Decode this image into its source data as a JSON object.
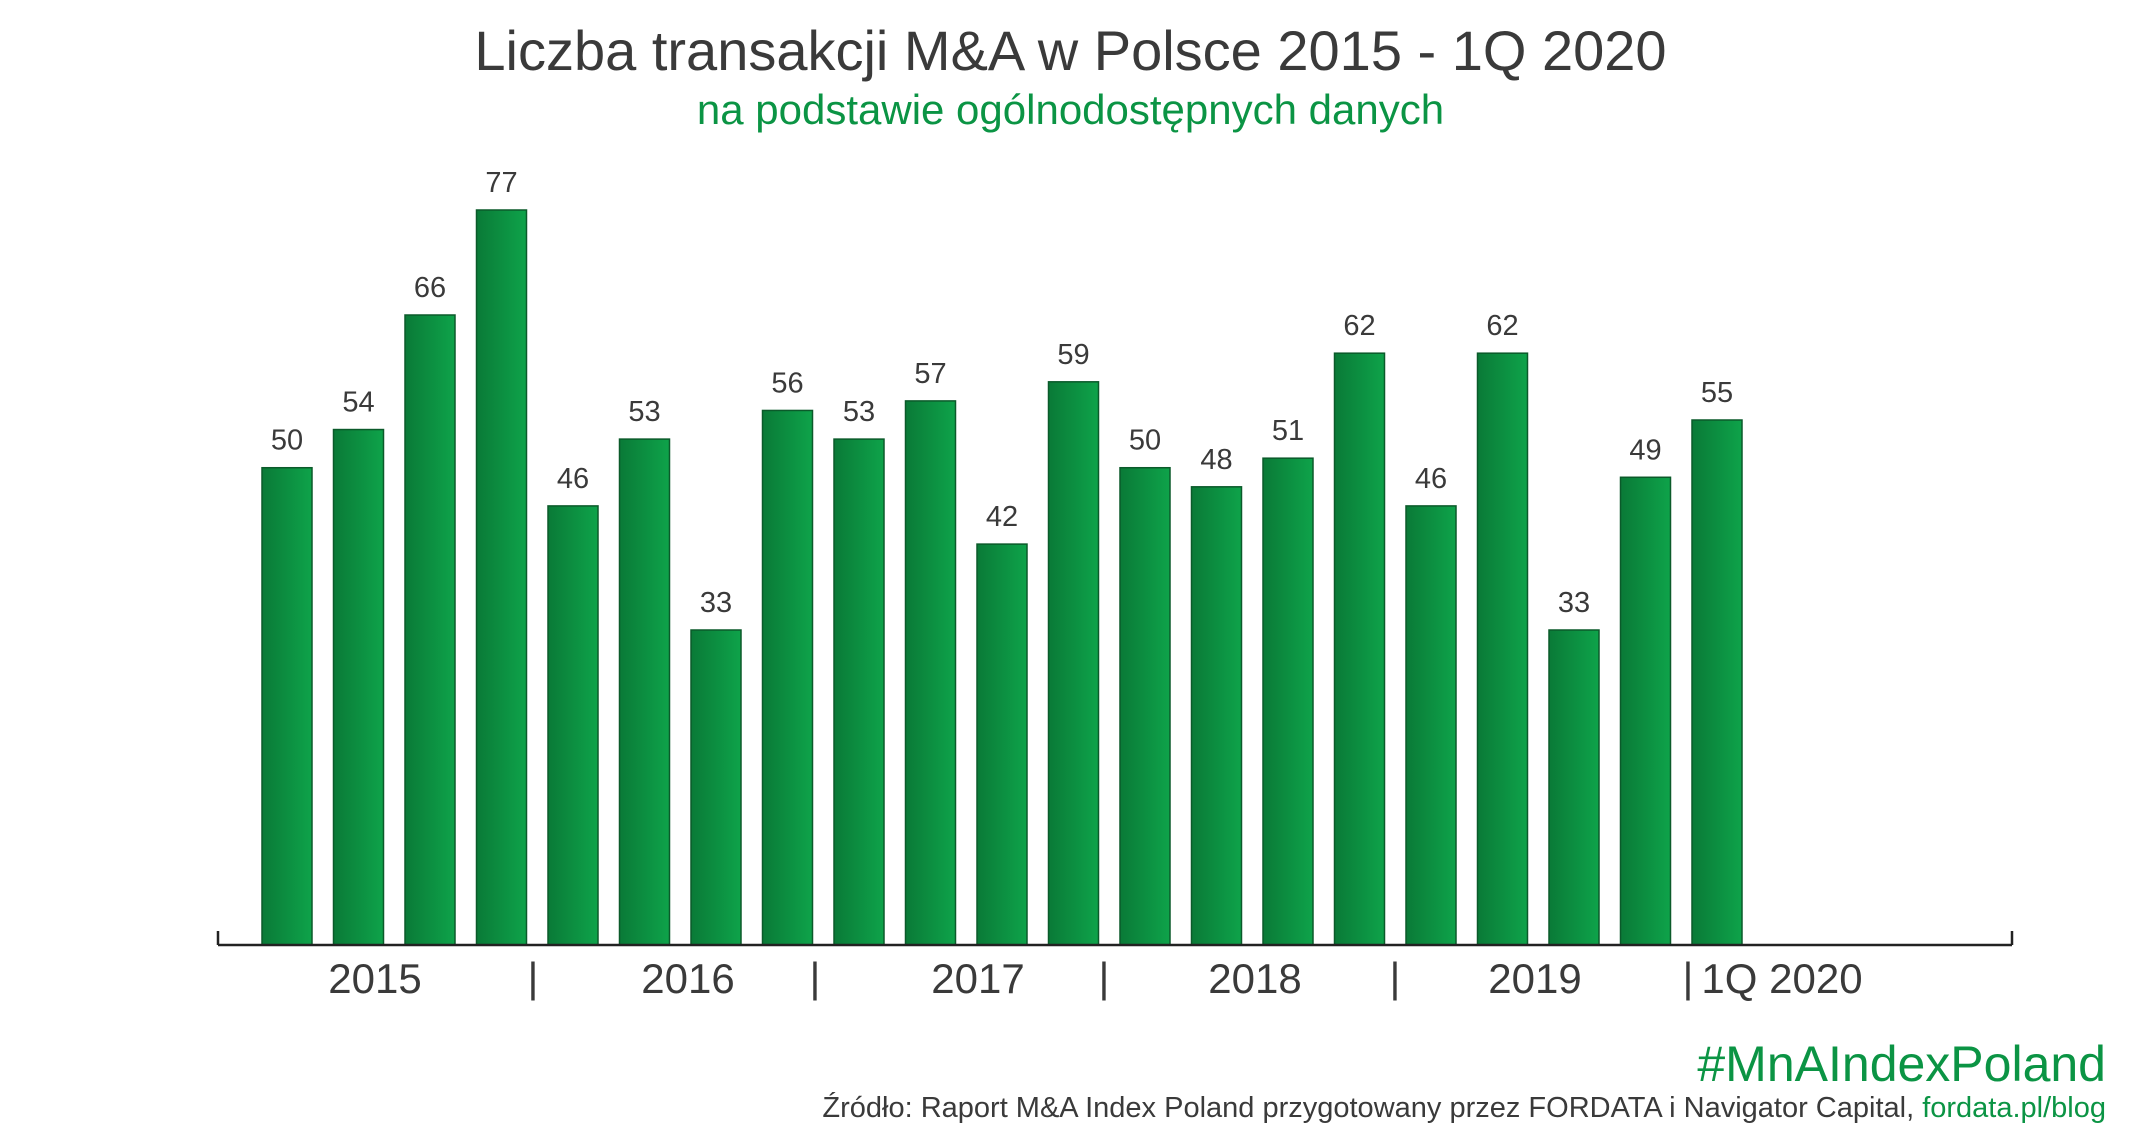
{
  "title": "Liczba transakcji M&A w Polsce 2015 - 1Q 2020",
  "subtitle": "na podstawie ogólnodostępnych danych",
  "hashtag": "#MnAIndexPoland",
  "source_text": "Źródło: Raport M&A Index Poland przygotowany przez FORDATA i Navigator Capital,",
  "source_link": "fordata.pl/blog",
  "colors": {
    "bar_dark": "#0a7a37",
    "bar_light": "#0ea34a",
    "green_text": "#0b9444",
    "text": "#3a3a3a"
  },
  "chart_data": {
    "type": "bar",
    "values": [
      50,
      54,
      66,
      77,
      46,
      53,
      33,
      56,
      53,
      57,
      42,
      59,
      50,
      48,
      51,
      62,
      46,
      62,
      33,
      49,
      55
    ],
    "groups": [
      {
        "label": "2015",
        "count": 4
      },
      {
        "label": "2016",
        "count": 4
      },
      {
        "label": "2017",
        "count": 4
      },
      {
        "label": "2018",
        "count": 4
      },
      {
        "label": "2019",
        "count": 4
      },
      {
        "label": "1Q 2020",
        "count": 1
      }
    ],
    "group_separator": "|",
    "ylim": [
      0,
      80
    ],
    "grid": false
  }
}
